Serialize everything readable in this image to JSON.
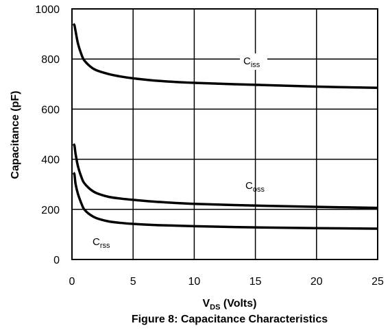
{
  "chart_data": {
    "type": "line",
    "title": "Figure 8: Capacitance Characteristics",
    "xlabel": {
      "main": "V",
      "sub": "DS",
      "rest": " (Volts)"
    },
    "ylabel": "Capacitance (pF)",
    "xlim": [
      0,
      25
    ],
    "ylim": [
      0,
      1000
    ],
    "xticks": [
      0,
      5,
      10,
      15,
      20,
      25
    ],
    "yticks": [
      0,
      200,
      400,
      600,
      800,
      1000
    ],
    "grid": true,
    "series": [
      {
        "name": "Ciss",
        "label_main": "C",
        "label_sub": "iss",
        "x": [
          0.1,
          0.2,
          0.3,
          0.5,
          0.8,
          1.0,
          1.5,
          2,
          3,
          4,
          5,
          7,
          10,
          15,
          20,
          25
        ],
        "y": [
          940,
          935,
          910,
          860,
          815,
          795,
          770,
          755,
          740,
          730,
          723,
          713,
          705,
          697,
          690,
          685
        ]
      },
      {
        "name": "Coss",
        "label_main": "C",
        "label_sub": "oss",
        "x": [
          0.1,
          0.2,
          0.3,
          0.5,
          0.8,
          1.0,
          1.5,
          2,
          3,
          4,
          5,
          7,
          10,
          15,
          20,
          25
        ],
        "y": [
          460,
          455,
          420,
          370,
          325,
          305,
          280,
          265,
          250,
          243,
          238,
          230,
          222,
          215,
          210,
          206
        ]
      },
      {
        "name": "Crss",
        "label_main": "C",
        "label_sub": "rss",
        "x": [
          0.1,
          0.2,
          0.3,
          0.5,
          0.8,
          1.0,
          1.5,
          2,
          3,
          4,
          5,
          7,
          10,
          15,
          20,
          25
        ],
        "y": [
          345,
          340,
          300,
          260,
          220,
          200,
          178,
          165,
          152,
          146,
          142,
          137,
          133,
          128,
          125,
          123
        ]
      }
    ]
  }
}
